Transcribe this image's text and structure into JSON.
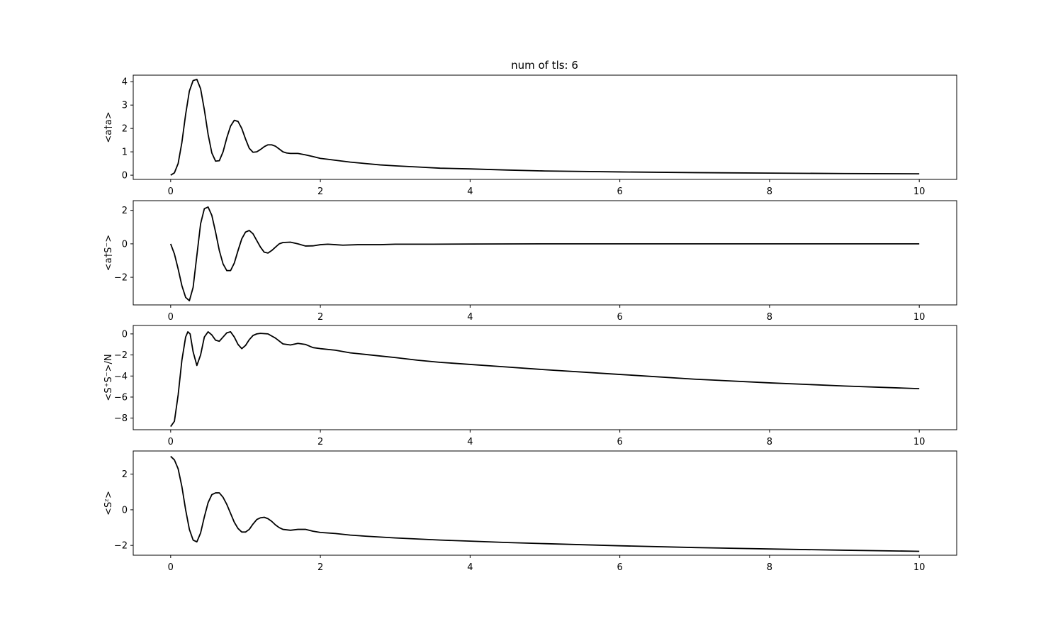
{
  "figure": {
    "title": "num of tls: 6"
  },
  "chart_data": [
    {
      "type": "line",
      "ylabel": "<a†a>",
      "xlim": [
        -0.5,
        10.5
      ],
      "ylim": [
        -0.18,
        4.28
      ],
      "xticks": [
        0,
        2,
        4,
        6,
        8,
        10
      ],
      "yticks": [
        0,
        1,
        2,
        3,
        4
      ],
      "x": [
        0,
        0.05,
        0.1,
        0.15,
        0.2,
        0.25,
        0.3,
        0.35,
        0.4,
        0.45,
        0.5,
        0.55,
        0.6,
        0.65,
        0.7,
        0.75,
        0.8,
        0.85,
        0.9,
        0.95,
        1.0,
        1.05,
        1.1,
        1.15,
        1.2,
        1.25,
        1.3,
        1.35,
        1.4,
        1.45,
        1.5,
        1.55,
        1.6,
        1.65,
        1.7,
        1.75,
        1.8,
        1.9,
        2.0,
        2.1,
        2.2,
        2.4,
        2.6,
        2.8,
        3.0,
        3.3,
        3.6,
        4.0,
        4.5,
        5.0,
        6.0,
        7.0,
        8.0,
        9.0,
        10.0
      ],
      "y": [
        0,
        0.1,
        0.5,
        1.4,
        2.6,
        3.6,
        4.05,
        4.1,
        3.7,
        2.8,
        1.75,
        0.95,
        0.6,
        0.62,
        1.0,
        1.6,
        2.1,
        2.35,
        2.3,
        2.0,
        1.55,
        1.15,
        0.98,
        1.0,
        1.1,
        1.22,
        1.3,
        1.3,
        1.24,
        1.12,
        1.0,
        0.95,
        0.93,
        0.93,
        0.93,
        0.9,
        0.87,
        0.8,
        0.72,
        0.68,
        0.64,
        0.56,
        0.5,
        0.44,
        0.4,
        0.35,
        0.3,
        0.27,
        0.22,
        0.18,
        0.14,
        0.11,
        0.09,
        0.07,
        0.06
      ]
    },
    {
      "type": "line",
      "ylabel": "<a†S⁻>",
      "xlim": [
        -0.5,
        10.5
      ],
      "ylim": [
        -3.65,
        2.58
      ],
      "xticks": [
        0,
        2,
        4,
        6,
        8,
        10
      ],
      "yticks": [
        -2,
        0,
        2
      ],
      "x": [
        0,
        0.05,
        0.1,
        0.15,
        0.2,
        0.25,
        0.3,
        0.35,
        0.4,
        0.45,
        0.5,
        0.55,
        0.6,
        0.65,
        0.7,
        0.75,
        0.8,
        0.85,
        0.9,
        0.95,
        1.0,
        1.05,
        1.1,
        1.15,
        1.2,
        1.25,
        1.3,
        1.35,
        1.4,
        1.45,
        1.5,
        1.6,
        1.7,
        1.8,
        1.9,
        2.0,
        2.1,
        2.2,
        2.3,
        2.5,
        2.8,
        3.0,
        3.5,
        4.0,
        5.0,
        6.0,
        7.0,
        8.0,
        9.0,
        10.0
      ],
      "y": [
        0,
        -0.6,
        -1.5,
        -2.5,
        -3.2,
        -3.4,
        -2.6,
        -0.7,
        1.2,
        2.1,
        2.2,
        1.7,
        0.7,
        -0.4,
        -1.2,
        -1.6,
        -1.6,
        -1.15,
        -0.4,
        0.3,
        0.7,
        0.8,
        0.6,
        0.2,
        -0.2,
        -0.5,
        -0.55,
        -0.4,
        -0.2,
        0.0,
        0.08,
        0.1,
        0.0,
        -0.13,
        -0.12,
        -0.05,
        -0.02,
        -0.05,
        -0.08,
        -0.05,
        -0.05,
        -0.02,
        -0.02,
        -0.01,
        0,
        0,
        0,
        0,
        0,
        0
      ]
    },
    {
      "type": "line",
      "ylabel": "<S⁺S⁻>/N",
      "xlim": [
        -0.5,
        10.5
      ],
      "ylim": [
        -9.1,
        0.8
      ],
      "xticks": [
        0,
        2,
        4,
        6,
        8,
        10
      ],
      "yticks": [
        -8,
        -6,
        -4,
        -2,
        0
      ],
      "x": [
        0,
        0.05,
        0.1,
        0.15,
        0.2,
        0.23,
        0.26,
        0.3,
        0.35,
        0.4,
        0.45,
        0.5,
        0.55,
        0.6,
        0.65,
        0.7,
        0.75,
        0.8,
        0.85,
        0.9,
        0.95,
        1.0,
        1.05,
        1.1,
        1.15,
        1.2,
        1.3,
        1.4,
        1.5,
        1.6,
        1.7,
        1.8,
        1.9,
        2.0,
        2.2,
        2.4,
        2.6,
        2.8,
        3.0,
        3.3,
        3.6,
        4.0,
        4.5,
        5.0,
        6.0,
        7.0,
        8.0,
        9.0,
        10.0
      ],
      "y": [
        -8.8,
        -8.3,
        -5.8,
        -2.5,
        -0.3,
        0.2,
        0.0,
        -1.7,
        -3.0,
        -2.0,
        -0.3,
        0.2,
        -0.1,
        -0.6,
        -0.7,
        -0.3,
        0.1,
        0.2,
        -0.3,
        -1.0,
        -1.4,
        -1.1,
        -0.55,
        -0.15,
        0.0,
        0.05,
        0.0,
        -0.4,
        -0.95,
        -1.05,
        -0.9,
        -1.0,
        -1.3,
        -1.4,
        -1.55,
        -1.8,
        -1.95,
        -2.1,
        -2.25,
        -2.5,
        -2.7,
        -2.9,
        -3.15,
        -3.4,
        -3.85,
        -4.3,
        -4.65,
        -4.95,
        -5.2
      ]
    },
    {
      "type": "line",
      "ylabel": "<Sᶻ>",
      "xlim": [
        -0.5,
        10.5
      ],
      "ylim": [
        -2.55,
        3.3
      ],
      "xticks": [
        0,
        2,
        4,
        6,
        8,
        10
      ],
      "yticks": [
        -2,
        0,
        2
      ],
      "x": [
        0,
        0.05,
        0.1,
        0.15,
        0.2,
        0.25,
        0.3,
        0.35,
        0.4,
        0.45,
        0.5,
        0.55,
        0.6,
        0.65,
        0.7,
        0.75,
        0.8,
        0.85,
        0.9,
        0.95,
        1.0,
        1.05,
        1.1,
        1.15,
        1.2,
        1.25,
        1.3,
        1.35,
        1.4,
        1.45,
        1.5,
        1.6,
        1.7,
        1.8,
        1.9,
        2.0,
        2.1,
        2.2,
        2.4,
        2.6,
        2.8,
        3.0,
        3.3,
        3.6,
        4.0,
        4.5,
        5.0,
        6.0,
        7.0,
        8.0,
        9.0,
        10.0
      ],
      "y": [
        3.0,
        2.8,
        2.3,
        1.3,
        0.0,
        -1.1,
        -1.7,
        -1.8,
        -1.3,
        -0.4,
        0.4,
        0.85,
        0.95,
        0.95,
        0.7,
        0.3,
        -0.2,
        -0.7,
        -1.05,
        -1.25,
        -1.25,
        -1.1,
        -0.8,
        -0.55,
        -0.45,
        -0.42,
        -0.5,
        -0.65,
        -0.85,
        -1.0,
        -1.1,
        -1.15,
        -1.1,
        -1.1,
        -1.2,
        -1.27,
        -1.3,
        -1.33,
        -1.42,
        -1.48,
        -1.53,
        -1.58,
        -1.64,
        -1.7,
        -1.76,
        -1.84,
        -1.9,
        -2.02,
        -2.12,
        -2.2,
        -2.27,
        -2.33
      ]
    }
  ]
}
